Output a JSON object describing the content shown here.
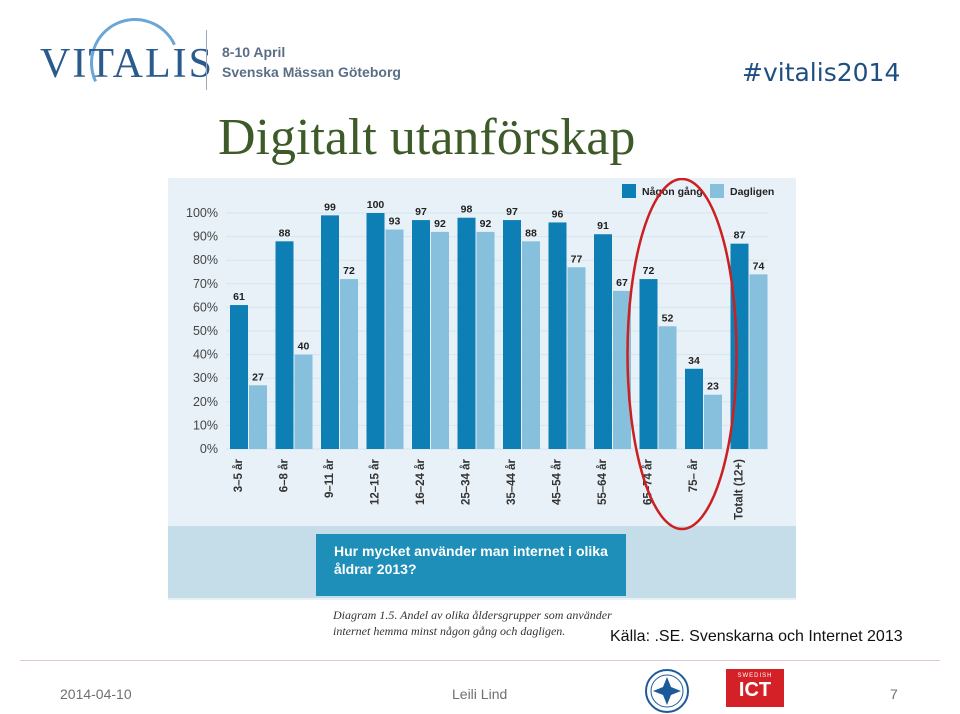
{
  "header": {
    "logo_text": "VITALIS",
    "event_date": "8-10 April",
    "event_venue": "Svenska Mässan Göteborg",
    "hashtag": "#vitalis2014"
  },
  "slide": {
    "title": "Digitalt utanförskap"
  },
  "chart_data": {
    "type": "bar",
    "title": "Hur mycket använder man internet i olika åldrar 2013?",
    "categories": [
      "3–5 år",
      "6–8 år",
      "9–11 år",
      "12–15 år",
      "16–24 år",
      "25–34 år",
      "35–44 år",
      "45–54 år",
      "55–64 år",
      "65–74 år",
      "75– år",
      "Totalt (12+)"
    ],
    "series": [
      {
        "name": "Någon gång",
        "color": "#0e7fb5",
        "values": [
          61,
          88,
          99,
          100,
          97,
          98,
          97,
          96,
          91,
          72,
          34,
          87
        ]
      },
      {
        "name": "Dagligen",
        "color": "#86c0dc",
        "values": [
          27,
          40,
          72,
          93,
          92,
          92,
          88,
          77,
          67,
          52,
          23,
          74
        ]
      }
    ],
    "y_ticks": [
      "0%",
      "10%",
      "20%",
      "30%",
      "40%",
      "50%",
      "60%",
      "70%",
      "80%",
      "90%",
      "100%"
    ],
    "ylim": [
      0,
      100
    ],
    "legend_position": "top-right",
    "annotation": "red ellipse highlighting 65–74 år and 75– år"
  },
  "question": {
    "line1": "Hur mycket använder man internet i olika",
    "line2": "åldrar 2013?"
  },
  "caption": {
    "line1": "Diagram 1.5. Andel av olika åldersgrupper som använder",
    "line2": "internet hemma minst någon gång och dagligen."
  },
  "source": "Källa: .SE. Svenskarna och Internet 2013",
  "footer": {
    "date": "2014-04-10",
    "author": "Leili Lind",
    "page": "7",
    "ict_small": "SWEDISH",
    "ict_big": "ICT"
  },
  "colors": {
    "accent_red": "#cc1f1f",
    "panel_bg": "#e8f1f7",
    "title_green": "#3d5a28"
  }
}
